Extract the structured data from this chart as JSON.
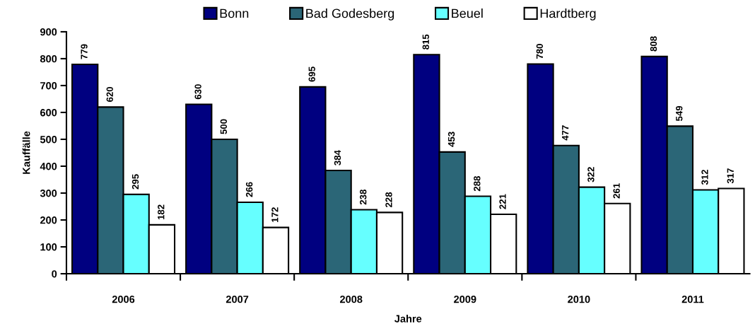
{
  "chart_data": {
    "type": "bar",
    "xlabel": "Jahre",
    "ylabel": "Kauffälle",
    "categories": [
      "2006",
      "2007",
      "2008",
      "2009",
      "2010",
      "2011"
    ],
    "series": [
      {
        "name": "Bonn",
        "color": "#000080",
        "values": [
          779,
          630,
          695,
          815,
          780,
          808
        ]
      },
      {
        "name": "Bad Godesberg",
        "color": "#2b6677",
        "values": [
          620,
          500,
          384,
          453,
          477,
          549
        ]
      },
      {
        "name": "Beuel",
        "color": "#66ffff",
        "values": [
          295,
          266,
          238,
          288,
          322,
          312
        ]
      },
      {
        "name": "Hardtberg",
        "color": "#ffffff",
        "values": [
          182,
          172,
          228,
          221,
          261,
          317
        ]
      }
    ],
    "ylim": [
      0,
      900
    ],
    "yticks": [
      0,
      100,
      200,
      300,
      400,
      500,
      600,
      700,
      800,
      900
    ],
    "data_labels": true,
    "grid": false,
    "legend": "top"
  }
}
